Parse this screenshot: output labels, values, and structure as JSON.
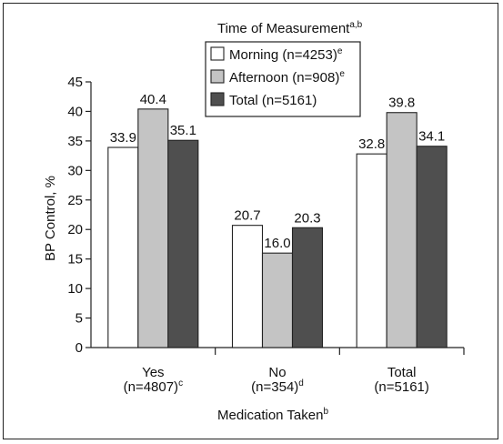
{
  "chart_data": {
    "type": "bar",
    "legend_title": "Time of Measurement",
    "legend_title_sup": "a,b",
    "categories": [
      {
        "label": "Yes",
        "sublabel": "(n=4807)",
        "sup": "c"
      },
      {
        "label": "No",
        "sublabel": "(n=354)",
        "sup": "d"
      },
      {
        "label": "Total",
        "sublabel": "(n=5161)",
        "sup": ""
      }
    ],
    "series": [
      {
        "name": "Morning (n=4253)",
        "sup": "e",
        "color": "#ffffff",
        "values": [
          33.9,
          20.7,
          32.8
        ],
        "labels": [
          "33.9",
          "20.7",
          "32.8"
        ]
      },
      {
        "name": "Afternoon (n=908)",
        "sup": "e",
        "color": "#c4c4c4",
        "values": [
          40.4,
          16.0,
          39.8
        ],
        "labels": [
          "40.4",
          "16.0",
          "39.8"
        ]
      },
      {
        "name": "Total (n=5161)",
        "sup": "",
        "color": "#4f4f4f",
        "values": [
          35.1,
          20.3,
          34.1
        ],
        "labels": [
          "35.1",
          "20.3",
          "34.1"
        ]
      }
    ],
    "ylabel": "BP Control, %",
    "xlabel": "Medication Taken",
    "xlabel_sup": "b",
    "ylim": [
      0,
      45
    ],
    "yticks": [
      0,
      5,
      10,
      15,
      20,
      25,
      30,
      35,
      40,
      45
    ],
    "legend_position": "top-center",
    "grid": false
  }
}
